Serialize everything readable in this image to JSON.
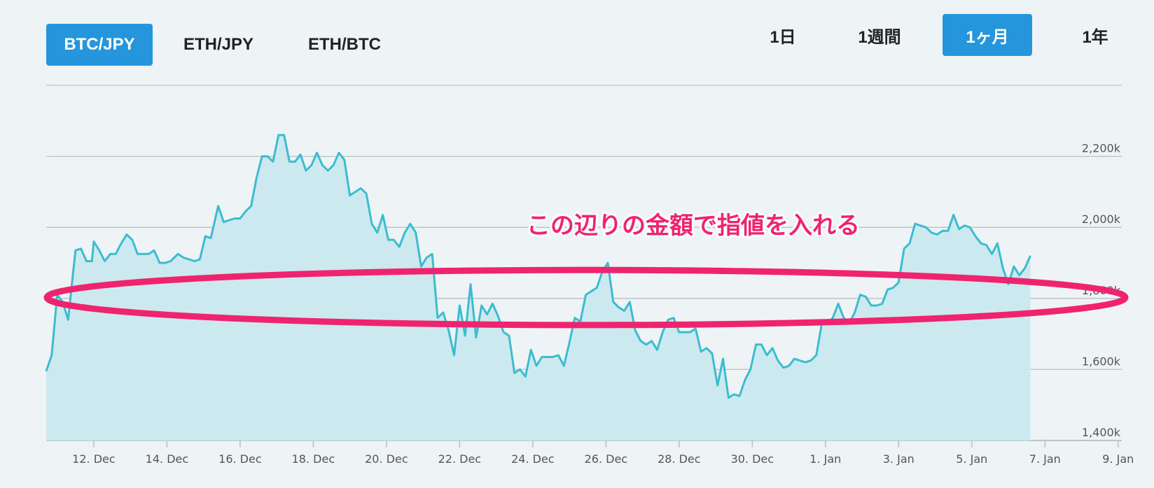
{
  "pair_tabs": [
    {
      "label": "BTC/JPY",
      "active": true
    },
    {
      "label": "ETH/JPY",
      "active": false
    },
    {
      "label": "ETH/BTC",
      "active": false
    }
  ],
  "range_tabs": [
    {
      "label": "1日",
      "active": false
    },
    {
      "label": "1週間",
      "active": false
    },
    {
      "label": "1ヶ月",
      "active": true
    },
    {
      "label": "1年",
      "active": false
    }
  ],
  "colors": {
    "accent": "#2596dc",
    "line": "#3cbcd0",
    "area": "#cde9f0",
    "annotation": "#f0246e"
  },
  "annotation": {
    "text": "この辺りの金額で指値を入れる",
    "band": [
      1725,
      1880
    ]
  },
  "chart_data": {
    "type": "area",
    "title": "",
    "xlabel": "",
    "ylabel": "",
    "ylim": [
      1400,
      2400
    ],
    "y_ticks": [
      {
        "value": 1400,
        "label": "1,400k"
      },
      {
        "value": 1600,
        "label": "1,600k"
      },
      {
        "value": 1800,
        "label": "1,800k"
      },
      {
        "value": 2000,
        "label": "2,000k"
      },
      {
        "value": 2200,
        "label": "2,200k"
      }
    ],
    "xlim": [
      10.7,
      40.1
    ],
    "x_ticks": [
      {
        "value": 12,
        "label": "12. Dec"
      },
      {
        "value": 14,
        "label": "14. Dec"
      },
      {
        "value": 16,
        "label": "16. Dec"
      },
      {
        "value": 18,
        "label": "18. Dec"
      },
      {
        "value": 20,
        "label": "20. Dec"
      },
      {
        "value": 22,
        "label": "22. Dec"
      },
      {
        "value": 24,
        "label": "24. Dec"
      },
      {
        "value": 26,
        "label": "26. Dec"
      },
      {
        "value": 28,
        "label": "28. Dec"
      },
      {
        "value": 30,
        "label": "30. Dec"
      },
      {
        "value": 32,
        "label": "1. Jan"
      },
      {
        "value": 34,
        "label": "3. Jan"
      },
      {
        "value": 36,
        "label": "5. Jan"
      },
      {
        "value": 38,
        "label": "7. Jan"
      },
      {
        "value": 40,
        "label": "9. Jan"
      }
    ],
    "grid": true,
    "series": [
      {
        "name": "",
        "points": [
          [
            10.7,
            1595
          ],
          [
            10.85,
            1640
          ],
          [
            11.0,
            1810
          ],
          [
            11.15,
            1790
          ],
          [
            11.3,
            1740
          ],
          [
            11.5,
            1935
          ],
          [
            11.65,
            1940
          ],
          [
            11.8,
            1905
          ],
          [
            11.95,
            1905
          ],
          [
            12.0,
            1960
          ],
          [
            12.15,
            1935
          ],
          [
            12.3,
            1905
          ],
          [
            12.45,
            1925
          ],
          [
            12.6,
            1925
          ],
          [
            12.75,
            1955
          ],
          [
            12.9,
            1980
          ],
          [
            13.05,
            1965
          ],
          [
            13.2,
            1925
          ],
          [
            13.35,
            1925
          ],
          [
            13.5,
            1925
          ],
          [
            13.65,
            1935
          ],
          [
            13.8,
            1900
          ],
          [
            13.95,
            1900
          ],
          [
            14.1,
            1905
          ],
          [
            14.3,
            1925
          ],
          [
            14.45,
            1915
          ],
          [
            14.6,
            1910
          ],
          [
            14.75,
            1905
          ],
          [
            14.9,
            1910
          ],
          [
            15.05,
            1975
          ],
          [
            15.2,
            1970
          ],
          [
            15.4,
            2060
          ],
          [
            15.55,
            2015
          ],
          [
            15.7,
            2020
          ],
          [
            15.85,
            2025
          ],
          [
            16.0,
            2025
          ],
          [
            16.15,
            2045
          ],
          [
            16.3,
            2060
          ],
          [
            16.45,
            2140
          ],
          [
            16.6,
            2200
          ],
          [
            16.75,
            2200
          ],
          [
            16.9,
            2185
          ],
          [
            17.05,
            2260
          ],
          [
            17.2,
            2260
          ],
          [
            17.35,
            2185
          ],
          [
            17.5,
            2185
          ],
          [
            17.65,
            2205
          ],
          [
            17.8,
            2160
          ],
          [
            17.95,
            2175
          ],
          [
            18.1,
            2210
          ],
          [
            18.25,
            2175
          ],
          [
            18.4,
            2160
          ],
          [
            18.55,
            2175
          ],
          [
            18.7,
            2210
          ],
          [
            18.85,
            2190
          ],
          [
            19.0,
            2090
          ],
          [
            19.15,
            2100
          ],
          [
            19.3,
            2110
          ],
          [
            19.45,
            2095
          ],
          [
            19.6,
            2010
          ],
          [
            19.75,
            1985
          ],
          [
            19.9,
            2035
          ],
          [
            20.05,
            1965
          ],
          [
            20.2,
            1965
          ],
          [
            20.35,
            1945
          ],
          [
            20.5,
            1985
          ],
          [
            20.65,
            2010
          ],
          [
            20.8,
            1985
          ],
          [
            20.95,
            1890
          ],
          [
            21.1,
            1915
          ],
          [
            21.25,
            1925
          ],
          [
            21.4,
            1745
          ],
          [
            21.55,
            1760
          ],
          [
            21.7,
            1710
          ],
          [
            21.85,
            1640
          ],
          [
            22.0,
            1780
          ],
          [
            22.15,
            1695
          ],
          [
            22.3,
            1840
          ],
          [
            22.45,
            1690
          ],
          [
            22.6,
            1780
          ],
          [
            22.75,
            1755
          ],
          [
            22.9,
            1785
          ],
          [
            23.05,
            1750
          ],
          [
            23.2,
            1705
          ],
          [
            23.35,
            1695
          ],
          [
            23.5,
            1590
          ],
          [
            23.65,
            1600
          ],
          [
            23.8,
            1580
          ],
          [
            23.95,
            1655
          ],
          [
            24.1,
            1610
          ],
          [
            24.25,
            1635
          ],
          [
            24.4,
            1635
          ],
          [
            24.55,
            1635
          ],
          [
            24.7,
            1640
          ],
          [
            24.85,
            1610
          ],
          [
            25.0,
            1675
          ],
          [
            25.15,
            1745
          ],
          [
            25.3,
            1735
          ],
          [
            25.45,
            1810
          ],
          [
            25.6,
            1820
          ],
          [
            25.75,
            1830
          ],
          [
            25.9,
            1875
          ],
          [
            26.05,
            1900
          ],
          [
            26.2,
            1790
          ],
          [
            26.35,
            1775
          ],
          [
            26.5,
            1765
          ],
          [
            26.65,
            1790
          ],
          [
            26.8,
            1710
          ],
          [
            26.95,
            1680
          ],
          [
            27.1,
            1670
          ],
          [
            27.25,
            1680
          ],
          [
            27.4,
            1655
          ],
          [
            27.55,
            1705
          ],
          [
            27.7,
            1740
          ],
          [
            27.85,
            1745
          ],
          [
            28.0,
            1705
          ],
          [
            28.15,
            1705
          ],
          [
            28.3,
            1705
          ],
          [
            28.45,
            1715
          ],
          [
            28.6,
            1650
          ],
          [
            28.75,
            1660
          ],
          [
            28.9,
            1645
          ],
          [
            29.05,
            1555
          ],
          [
            29.2,
            1630
          ],
          [
            29.35,
            1520
          ],
          [
            29.5,
            1530
          ],
          [
            29.65,
            1525
          ],
          [
            29.8,
            1570
          ],
          [
            29.95,
            1600
          ],
          [
            30.1,
            1670
          ],
          [
            30.25,
            1670
          ],
          [
            30.4,
            1640
          ],
          [
            30.55,
            1660
          ],
          [
            30.7,
            1625
          ],
          [
            30.85,
            1605
          ],
          [
            31.0,
            1610
          ],
          [
            31.15,
            1630
          ],
          [
            31.3,
            1625
          ],
          [
            31.45,
            1620
          ],
          [
            31.6,
            1625
          ],
          [
            31.75,
            1640
          ],
          [
            31.9,
            1730
          ],
          [
            32.05,
            1730
          ],
          [
            32.2,
            1745
          ],
          [
            32.35,
            1785
          ],
          [
            32.5,
            1745
          ],
          [
            32.65,
            1730
          ],
          [
            32.8,
            1760
          ],
          [
            32.95,
            1810
          ],
          [
            33.1,
            1805
          ],
          [
            33.25,
            1780
          ],
          [
            33.4,
            1780
          ],
          [
            33.55,
            1785
          ],
          [
            33.7,
            1825
          ],
          [
            33.85,
            1830
          ],
          [
            34.0,
            1845
          ],
          [
            34.15,
            1940
          ],
          [
            34.3,
            1955
          ],
          [
            34.45,
            2010
          ],
          [
            34.6,
            2005
          ],
          [
            34.75,
            2000
          ],
          [
            34.9,
            1985
          ],
          [
            35.05,
            1980
          ],
          [
            35.2,
            1990
          ],
          [
            35.35,
            1990
          ],
          [
            35.5,
            2035
          ],
          [
            35.65,
            1995
          ],
          [
            35.8,
            2005
          ],
          [
            35.95,
            2000
          ],
          [
            36.1,
            1975
          ],
          [
            36.25,
            1955
          ],
          [
            36.4,
            1950
          ],
          [
            36.55,
            1925
          ],
          [
            36.7,
            1955
          ],
          [
            36.85,
            1885
          ],
          [
            37.0,
            1840
          ],
          [
            37.15,
            1890
          ],
          [
            37.3,
            1865
          ],
          [
            37.45,
            1885
          ],
          [
            37.6,
            1920
          ]
        ]
      }
    ]
  }
}
